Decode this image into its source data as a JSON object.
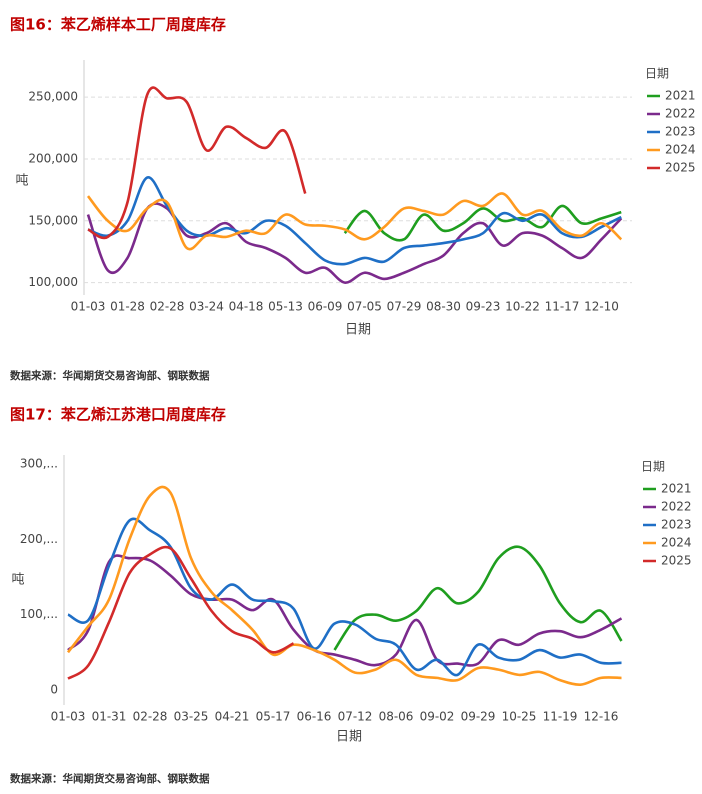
{
  "chart_data": [
    {
      "type": "line",
      "title": "图16：苯乙烯样本工厂周度库存",
      "source": "数据来源：华闻期货交易咨询部、钢联数据",
      "x_label": "日期",
      "y_label": "吨",
      "legend_title": "日期",
      "legend": "right",
      "grid": true,
      "categories": [
        "01-03",
        null,
        "01-28",
        null,
        "02-28",
        null,
        "03-24",
        null,
        "04-18",
        null,
        "05-13",
        null,
        "06-09",
        null,
        "07-05",
        null,
        "07-29",
        null,
        "08-30",
        null,
        "09-23",
        null,
        "10-22",
        null,
        "11-17",
        null,
        "12-10",
        null
      ],
      "ylim": [
        90000,
        280000
      ],
      "yticks": [
        {
          "value": 100000,
          "label": "100,000"
        },
        {
          "value": 150000,
          "label": "150,000"
        },
        {
          "value": 200000,
          "label": "200,000"
        },
        {
          "value": 250000,
          "label": "250,000"
        }
      ],
      "series": [
        {
          "name": "2021",
          "color": "#1f9e1f",
          "values": [
            null,
            null,
            null,
            null,
            null,
            null,
            null,
            null,
            null,
            null,
            null,
            null,
            null,
            140000,
            158000,
            140000,
            135000,
            155000,
            142000,
            148000,
            160000,
            150000,
            152000,
            145000,
            162000,
            148000,
            152000,
            157000
          ]
        },
        {
          "name": "2022",
          "color": "#7b2a8c",
          "values": [
            155000,
            110000,
            120000,
            160000,
            160000,
            138000,
            140000,
            148000,
            133000,
            128000,
            120000,
            108000,
            112000,
            100000,
            108000,
            103000,
            108000,
            115000,
            122000,
            140000,
            148000,
            130000,
            140000,
            138000,
            128000,
            120000,
            135000,
            152000
          ]
        },
        {
          "name": "2023",
          "color": "#1f6fc6",
          "values": [
            143000,
            138000,
            150000,
            185000,
            162000,
            142000,
            138000,
            144000,
            140000,
            150000,
            146000,
            132000,
            118000,
            115000,
            120000,
            117000,
            128000,
            130000,
            132000,
            135000,
            140000,
            156000,
            150000,
            155000,
            140000,
            137000,
            145000,
            153000
          ]
        },
        {
          "name": "2024",
          "color": "#ff9a1f",
          "values": [
            170000,
            150000,
            142000,
            160000,
            165000,
            128000,
            138000,
            137000,
            142000,
            140000,
            155000,
            147000,
            146000,
            143000,
            135000,
            145000,
            160000,
            158000,
            155000,
            166000,
            162000,
            172000,
            155000,
            158000,
            143000,
            138000,
            148000,
            135000
          ]
        },
        {
          "name": "2025",
          "color": "#d22a2a",
          "values": [
            143000,
            137000,
            165000,
            252000,
            249000,
            246000,
            207000,
            226000,
            217000,
            209000,
            222000,
            172000,
            null,
            null,
            null,
            null,
            null,
            null,
            null,
            null,
            null,
            null,
            null,
            null,
            null,
            null,
            null,
            null
          ]
        }
      ]
    },
    {
      "type": "line",
      "title": "图17：苯乙烯江苏港口周度库存",
      "source": "数据来源：华闻期货交易咨询部、钢联数据",
      "x_label": "日期",
      "y_label": "吨",
      "legend_title": "日期",
      "legend": "right",
      "grid": false,
      "categories": [
        "01-03",
        null,
        "01-31",
        null,
        "02-28",
        null,
        "03-25",
        null,
        "04-21",
        null,
        "05-17",
        null,
        "06-16",
        null,
        "07-12",
        null,
        "08-06",
        null,
        "09-02",
        null,
        "09-29",
        null,
        "10-25",
        null,
        "11-19",
        null,
        "12-16",
        null
      ],
      "ylim": [
        -20000,
        312000
      ],
      "yticks": [
        0,
        {
          "value": 100000,
          "label": "100,..."
        },
        {
          "value": 200000,
          "label": "200,..."
        },
        {
          "value": 300000,
          "label": "300,..."
        }
      ],
      "series": [
        {
          "name": "2021",
          "color": "#1f9e1f",
          "values": [
            null,
            null,
            null,
            null,
            null,
            null,
            null,
            null,
            null,
            null,
            null,
            null,
            null,
            53000,
            93000,
            100000,
            92000,
            105000,
            135000,
            115000,
            130000,
            175000,
            190000,
            165000,
            115000,
            90000,
            105000,
            65000
          ]
        },
        {
          "name": "2022",
          "color": "#7b2a8c",
          "values": [
            53000,
            80000,
            170000,
            175000,
            172000,
            152000,
            127000,
            120000,
            120000,
            106000,
            120000,
            80000,
            53000,
            47000,
            40000,
            33000,
            47000,
            93000,
            40000,
            35000,
            35000,
            66000,
            60000,
            75000,
            78000,
            70000,
            80000,
            95000
          ]
        },
        {
          "name": "2023",
          "color": "#1f6fc6",
          "values": [
            100000,
            93000,
            165000,
            225000,
            212000,
            190000,
            135000,
            120000,
            140000,
            120000,
            118000,
            108000,
            55000,
            88000,
            87000,
            68000,
            60000,
            27000,
            40000,
            20000,
            60000,
            43000,
            40000,
            53000,
            43000,
            47000,
            36000,
            36000
          ]
        },
        {
          "name": "2024",
          "color": "#ff9a1f",
          "values": [
            50000,
            85000,
            120000,
            200000,
            258000,
            262000,
            175000,
            130000,
            106000,
            80000,
            47000,
            60000,
            53000,
            40000,
            23000,
            27000,
            40000,
            20000,
            16000,
            13000,
            29000,
            27000,
            20000,
            24000,
            13000,
            7000,
            16000,
            16000
          ]
        },
        {
          "name": "2025",
          "color": "#d22a2a",
          "values": [
            15000,
            33000,
            90000,
            155000,
            180000,
            188000,
            148000,
            105000,
            78000,
            68000,
            50000,
            62000,
            null,
            null,
            null,
            null,
            null,
            null,
            null,
            null,
            null,
            null,
            null,
            null,
            null,
            null,
            null,
            null
          ]
        }
      ]
    }
  ]
}
